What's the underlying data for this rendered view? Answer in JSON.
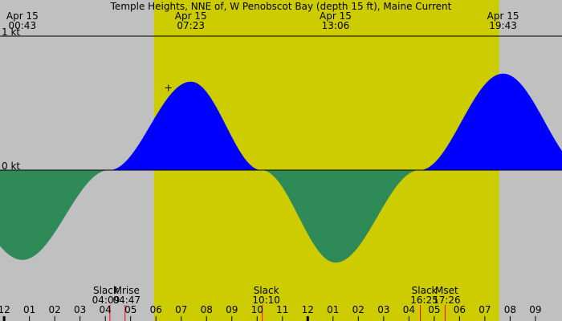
{
  "chart_data": {
    "type": "area",
    "title": "Temple Heights, NNE of, W Penobscot Bay (depth 15 ft), Maine Current",
    "unit": "kt",
    "ylim": [
      -1.2,
      1.0
    ],
    "y_ticks": [
      {
        "value": 1,
        "label": "1 kt"
      },
      {
        "value": 0,
        "label": "0 kt"
      }
    ],
    "xlim": [
      -0.1,
      22.05
    ],
    "hour_ticks": [
      "11",
      "12",
      "01",
      "02",
      "03",
      "04",
      "05",
      "06",
      "07",
      "08",
      "09",
      "10",
      "11",
      "12",
      "01",
      "02",
      "03",
      "04",
      "05",
      "06",
      "07",
      "08",
      "09"
    ],
    "hour_tick_start": -1,
    "daylight": {
      "start": 5.92,
      "end": 19.56
    },
    "extrema": [
      {
        "date": "Apr 15",
        "time": "00:43",
        "hour": 0.72,
        "value": -0.67
      },
      {
        "date": "Apr 15",
        "time": "07:23",
        "hour": 7.38,
        "value": 0.66
      },
      {
        "date": "Apr 15",
        "time": "13:06",
        "hour": 13.1,
        "value": -0.69
      },
      {
        "date": "Apr 15",
        "time": "19:43",
        "hour": 19.72,
        "value": 0.72
      }
    ],
    "slack": [
      {
        "label": "Slack",
        "time": "04:09",
        "hour": 4.15
      },
      {
        "label": "Slack",
        "time": "10:10",
        "hour": 10.17
      },
      {
        "label": "Slack",
        "time": "16:25",
        "hour": 16.42
      }
    ],
    "moon": [
      {
        "label": "Mrise",
        "time": "04:47",
        "hour": 4.78
      },
      {
        "label": "Mset",
        "time": "17:26",
        "hour": 17.43
      }
    ],
    "colors": {
      "flood": "#0000ff",
      "ebb": "#2e8b57",
      "daylight": "#cccc00",
      "night": "#c0c0c0",
      "event_tick": "#ff0000"
    }
  }
}
